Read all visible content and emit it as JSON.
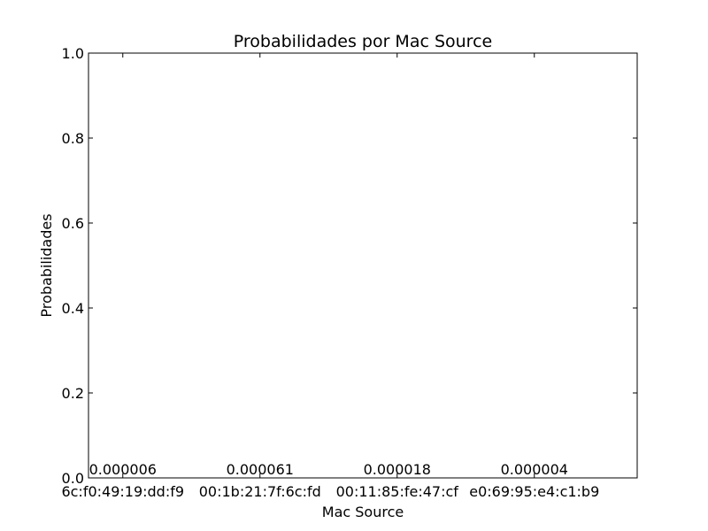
{
  "chart_data": {
    "type": "bar",
    "title": "Probabilidades por Mac Source",
    "xlabel": "Mac Source",
    "ylabel": "Probabilidades",
    "categories": [
      "6c:f0:49:19:dd:f9",
      "00:1b:21:7f:6c:fd",
      "00:11:85:fe:47:cf",
      "e0:69:95:e4:c1:b9"
    ],
    "values": [
      6e-06,
      6.1e-05,
      1.8e-05,
      4e-06
    ],
    "value_labels": [
      "0.000006",
      "0.000061",
      "0.000018",
      "0.000004"
    ],
    "ylim": [
      0,
      1
    ],
    "yticks": [
      0.0,
      0.2,
      0.4,
      0.6,
      0.8,
      1.0
    ],
    "ytick_labels": [
      "0.0",
      "0.2",
      "0.4",
      "0.6",
      "0.8",
      "1.0"
    ],
    "grid": false,
    "bar_color": "#0000ff"
  }
}
